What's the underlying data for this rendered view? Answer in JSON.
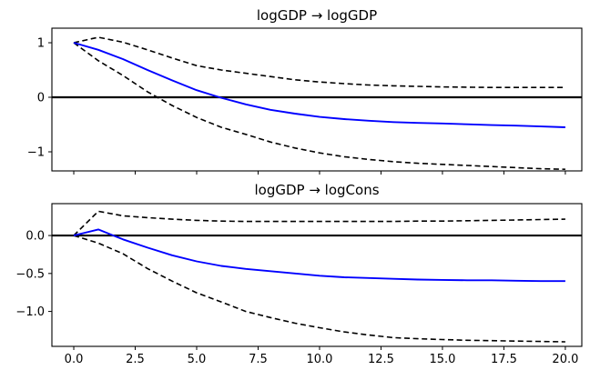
{
  "figure": {
    "background": "#ffffff",
    "response_color": "#0000ff",
    "band_color": "#000000",
    "zero_line_color": "#000000",
    "axis_color": "#000000"
  },
  "chart_data": [
    {
      "type": "line",
      "title": "logGDP → logGDP",
      "x": [
        0,
        1,
        2,
        3,
        4,
        5,
        6,
        7,
        8,
        9,
        10,
        11,
        12,
        13,
        14,
        15,
        16,
        17,
        18,
        19,
        20
      ],
      "series": [
        {
          "name": "impulse-response",
          "style": "solid",
          "color": "#0000ff",
          "values": [
            1.0,
            0.87,
            0.7,
            0.5,
            0.31,
            0.13,
            -0.01,
            -0.13,
            -0.23,
            -0.3,
            -0.36,
            -0.4,
            -0.43,
            -0.455,
            -0.47,
            -0.48,
            -0.495,
            -0.51,
            -0.52,
            -0.535,
            -0.55
          ]
        },
        {
          "name": "upper-band",
          "style": "dashed",
          "color": "#000000",
          "values": [
            1.0,
            1.1,
            1.01,
            0.87,
            0.72,
            0.58,
            0.5,
            0.44,
            0.38,
            0.32,
            0.28,
            0.25,
            0.225,
            0.21,
            0.2,
            0.19,
            0.185,
            0.18,
            0.18,
            0.18,
            0.18
          ]
        },
        {
          "name": "lower-band",
          "style": "dashed",
          "color": "#000000",
          "values": [
            1.0,
            0.67,
            0.4,
            0.1,
            -0.15,
            -0.37,
            -0.55,
            -0.68,
            -0.82,
            -0.93,
            -1.02,
            -1.09,
            -1.14,
            -1.18,
            -1.21,
            -1.23,
            -1.25,
            -1.27,
            -1.29,
            -1.31,
            -1.32
          ]
        }
      ],
      "zero_line": 0,
      "xlim": [
        -0.89,
        20.67
      ],
      "ylim": [
        -1.35,
        1.267
      ],
      "yticks": [
        1,
        0,
        -1
      ],
      "ytick_labels": [
        "1",
        "0",
        "−1"
      ],
      "xticks": [
        0,
        2.5,
        5,
        7.5,
        10,
        12.5,
        15,
        17.5,
        20
      ],
      "xtick_labels": [
        "0.0",
        "2.5",
        "5.0",
        "7.5",
        "10.0",
        "12.5",
        "15.0",
        "17.5",
        "20.0"
      ],
      "show_xtick_labels": false,
      "grid": false,
      "legend": null
    },
    {
      "type": "line",
      "title": "logGDP → logCons",
      "x": [
        0,
        1,
        2,
        3,
        4,
        5,
        6,
        7,
        8,
        9,
        10,
        11,
        12,
        13,
        14,
        15,
        16,
        17,
        18,
        19,
        20
      ],
      "series": [
        {
          "name": "impulse-response",
          "style": "solid",
          "color": "#0000ff",
          "values": [
            0.0,
            0.08,
            -0.05,
            -0.16,
            -0.26,
            -0.34,
            -0.4,
            -0.44,
            -0.47,
            -0.5,
            -0.53,
            -0.55,
            -0.56,
            -0.57,
            -0.58,
            -0.585,
            -0.59,
            -0.59,
            -0.595,
            -0.6,
            -0.6
          ]
        },
        {
          "name": "upper-band",
          "style": "dashed",
          "color": "#000000",
          "values": [
            0.0,
            0.32,
            0.26,
            0.235,
            0.215,
            0.2,
            0.19,
            0.185,
            0.185,
            0.185,
            0.185,
            0.185,
            0.185,
            0.185,
            0.19,
            0.19,
            0.195,
            0.2,
            0.205,
            0.21,
            0.215
          ]
        },
        {
          "name": "lower-band",
          "style": "dashed",
          "color": "#000000",
          "values": [
            0.0,
            -0.1,
            -0.24,
            -0.435,
            -0.6,
            -0.755,
            -0.875,
            -1.0,
            -1.08,
            -1.155,
            -1.215,
            -1.27,
            -1.31,
            -1.345,
            -1.36,
            -1.37,
            -1.38,
            -1.385,
            -1.39,
            -1.395,
            -1.4
          ]
        }
      ],
      "zero_line": 0,
      "xlim": [
        -0.89,
        20.67
      ],
      "ylim": [
        -1.46,
        0.42
      ],
      "yticks": [
        0,
        -0.5,
        -1
      ],
      "ytick_labels": [
        "0.0",
        "−0.5",
        "−1.0"
      ],
      "xticks": [
        0,
        2.5,
        5,
        7.5,
        10,
        12.5,
        15,
        17.5,
        20
      ],
      "xtick_labels": [
        "0.0",
        "2.5",
        "5.0",
        "7.5",
        "10.0",
        "12.5",
        "15.0",
        "17.5",
        "20.0"
      ],
      "show_xtick_labels": true,
      "grid": false,
      "legend": null
    }
  ]
}
